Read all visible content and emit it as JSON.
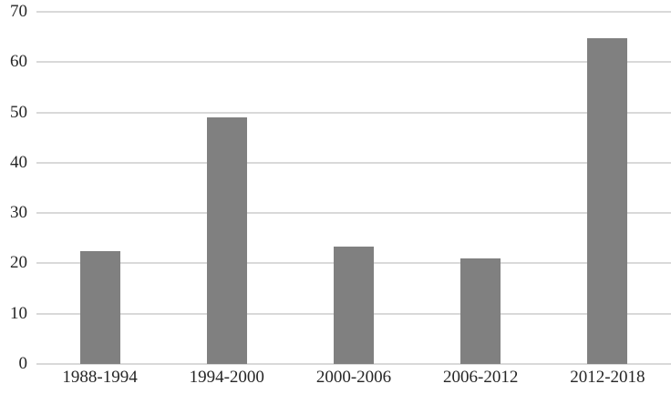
{
  "chart_data": {
    "type": "bar",
    "title": "",
    "xlabel": "",
    "ylabel": "",
    "categories": [
      "1988-1994",
      "1994-2000",
      "2000-2006",
      "2006-2012",
      "2012-2018"
    ],
    "values": [
      22.5,
      49,
      23.3,
      21,
      64.8
    ],
    "ylim": [
      0,
      70
    ],
    "yticks": [
      0,
      10,
      20,
      30,
      40,
      50,
      60,
      70
    ],
    "grid": true,
    "legend": false,
    "colors": {
      "bar": "#808080",
      "gridline": "#d9d9d9",
      "axis_line": "#d9d9d9",
      "text": "#262626",
      "background": "#ffffff"
    }
  }
}
